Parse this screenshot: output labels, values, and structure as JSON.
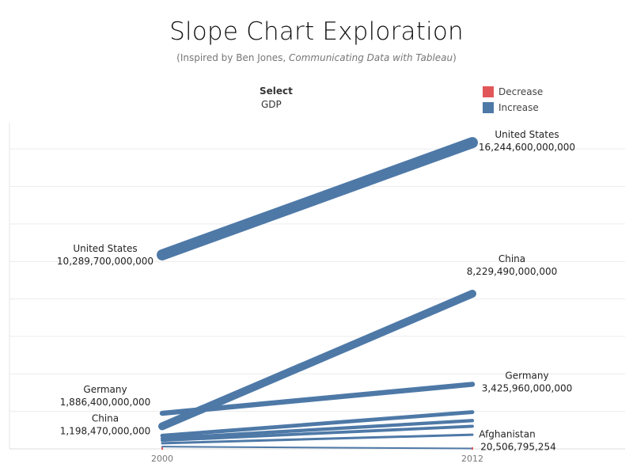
{
  "header": {
    "title": "Slope Chart Exploration",
    "subtitle_prefix": "(Inspired by Ben Jones, ",
    "subtitle_book": "Communicating Data with Tableau",
    "subtitle_suffix": ")"
  },
  "filter": {
    "label": "Select",
    "value": "GDP"
  },
  "legend": [
    {
      "name": "Decrease",
      "color": "#e15759"
    },
    {
      "name": "Increase",
      "color": "#4e79a7"
    }
  ],
  "chart_data": {
    "type": "line",
    "x": [
      "2000",
      "2012"
    ],
    "grid": true,
    "series": [
      {
        "name": "United States",
        "values": [
          10289700000000,
          16244600000000
        ],
        "labels": [
          "10,289,700,000,000",
          "16,244,600,000,000"
        ],
        "direction": "Increase"
      },
      {
        "name": "China",
        "values": [
          1198470000000,
          8229490000000
        ],
        "labels": [
          "1,198,470,000,000",
          "8,229,490,000,000"
        ],
        "direction": "Increase"
      },
      {
        "name": "Germany",
        "values": [
          1886400000000,
          3425960000000
        ],
        "labels": [
          "1,886,400,000,000",
          "3,425,960,000,000"
        ],
        "direction": "Increase"
      },
      {
        "name": "Afghanistan",
        "values": [
          null,
          20506795254
        ],
        "labels": [
          "",
          "20,506,795,254"
        ],
        "direction": "Increase"
      },
      {
        "name": "",
        "values": [
          700000000000,
          1950000000000
        ],
        "direction": "Increase"
      },
      {
        "name": "",
        "values": [
          550000000000,
          1500000000000
        ],
        "direction": "Increase"
      },
      {
        "name": "",
        "values": [
          450000000000,
          1200000000000
        ],
        "direction": "Increase"
      },
      {
        "name": "",
        "values": [
          300000000000,
          750000000000
        ],
        "direction": "Increase"
      }
    ]
  }
}
